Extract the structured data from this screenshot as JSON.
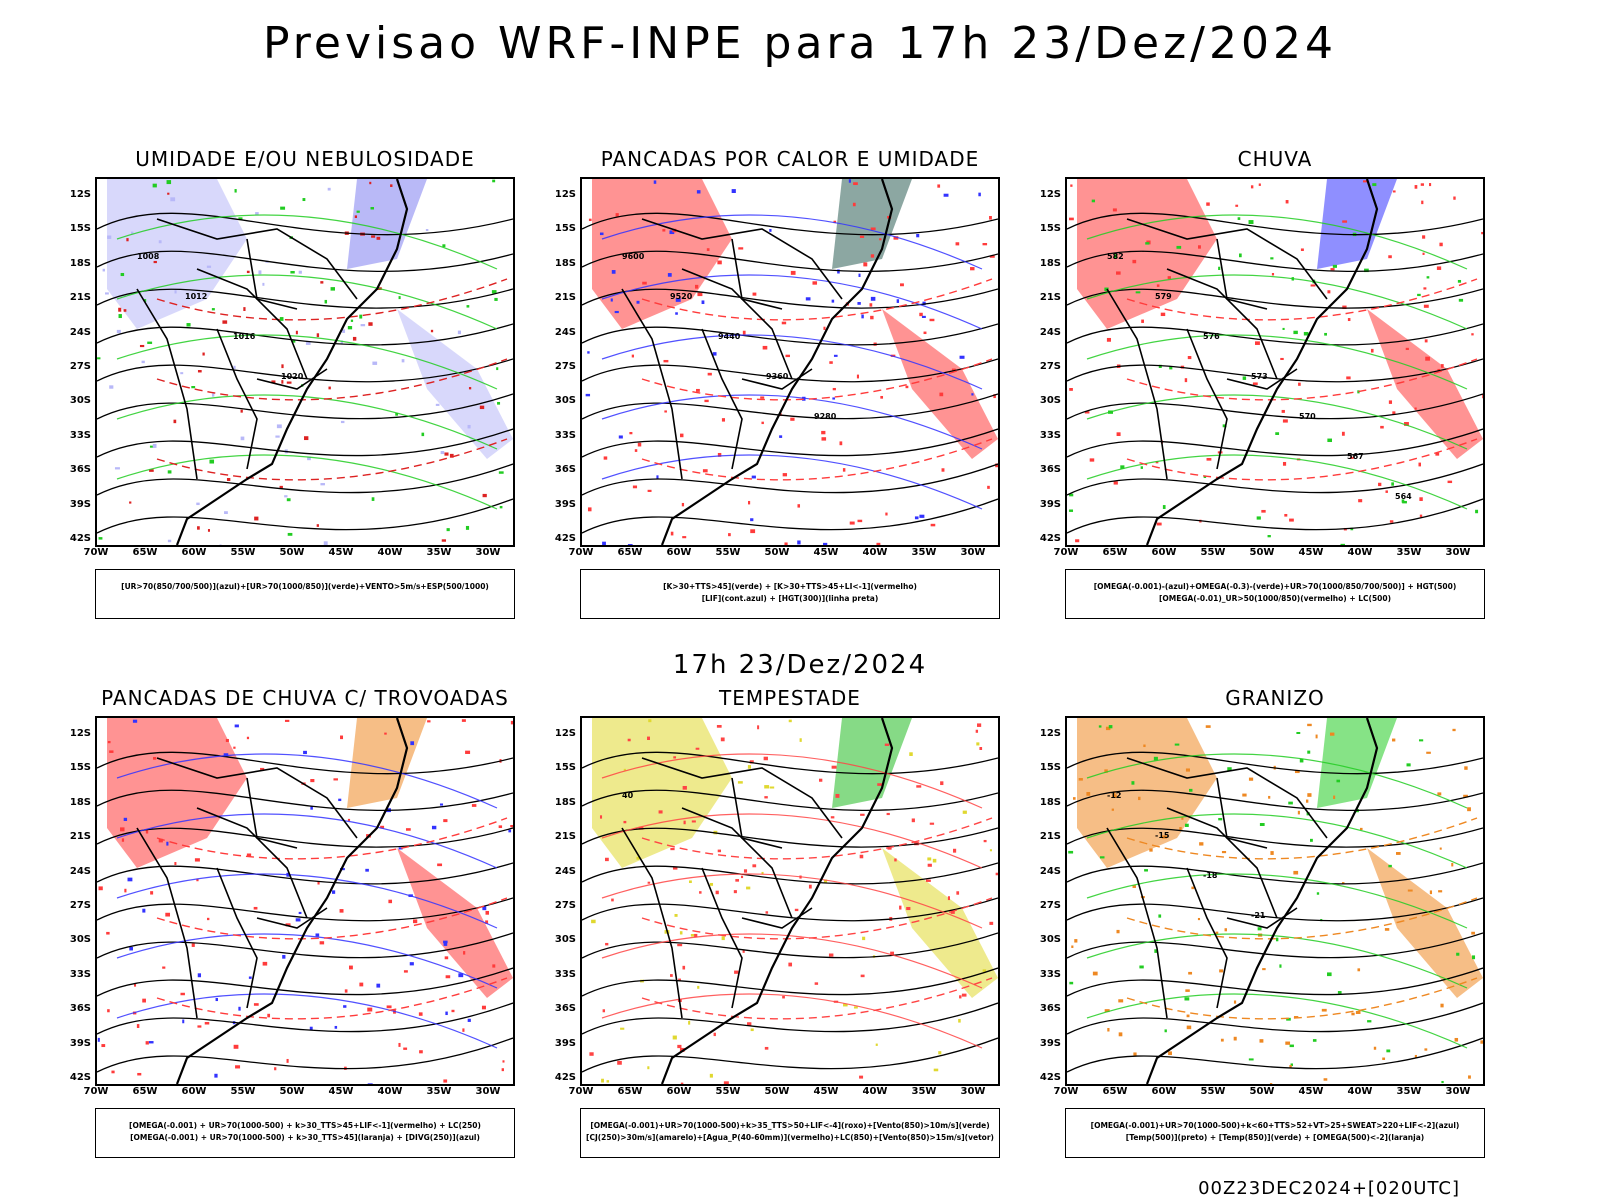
{
  "title": "Previsao WRF-INPE  para 17h 23/Dez/2024",
  "subtitle": "17h 23/Dez/2024",
  "footer": "00Z23DEC2024+[020UTC]",
  "axis": {
    "lat_labels": [
      "12S",
      "15S",
      "18S",
      "21S",
      "24S",
      "27S",
      "30S",
      "33S",
      "36S",
      "39S",
      "42S"
    ],
    "lon_labels": [
      "70W",
      "65W",
      "60W",
      "55W",
      "50W",
      "45W",
      "40W",
      "35W",
      "30W"
    ]
  },
  "panels": [
    {
      "title": "UMIDADE E/OU NEBULOSIDADE",
      "legend": [
        "[UR>70(850/700/500)](azul)+[UR>70(1000/850)](verde)+VENTO>5m/s+ESP(500/1000)"
      ],
      "contour_labels": [
        "1008",
        "1012",
        "1016",
        "1020"
      ],
      "colors": {
        "fill": "#b8b8f8",
        "fill2": "#8080f0",
        "line1": "#22cc22",
        "line2": "#dd2222",
        "line3": "#000000"
      }
    },
    {
      "title": "PANCADAS POR CALOR E UMIDADE",
      "legend": [
        "[K>30+TTS>45](verde)  +  [K>30+TTS>45+LI<-1](vermelho)",
        "[LIF](cont.azul)  +  [HGT(300)](linha preta)"
      ],
      "contour_labels": [
        "9600",
        "9520",
        "9440",
        "9360",
        "9280"
      ],
      "colors": {
        "fill": "#ff3b3b",
        "fill2": "#2e5e55",
        "line1": "#3333ff",
        "line2": "#ff3b3b",
        "line3": "#000000"
      }
    },
    {
      "title": "CHUVA",
      "legend": [
        "[OMEGA(-0.001)-(azul)+OMEGA(-0.3)-(verde)+UR>70(1000/850/700/500)]  +  HGT(500)",
        "[OMEGA(-0.01)_UR>50(1000/850)(vermelho)  +  LC(500)"
      ],
      "contour_labels": [
        "582",
        "579",
        "576",
        "573",
        "570",
        "567",
        "564"
      ],
      "colors": {
        "fill": "#ff3b3b",
        "fill2": "#3333ff",
        "line1": "#22cc22",
        "line2": "#ff3b3b",
        "line3": "#000000"
      }
    },
    {
      "title": "PANCADAS DE CHUVA C/ TROVOADAS",
      "legend": [
        "[OMEGA(-0.001)  +  UR>70(1000-500)  +  k>30_TTS>45+LIF<-1](vermelho)  +  LC(250)",
        "[OMEGA(-0.001)  +  UR>70(1000-500)  +  k>30_TTS>45](laranja)  +  [DIVG(250)](azul)"
      ],
      "contour_labels": [],
      "colors": {
        "fill": "#ff3b3b",
        "fill2": "#ee8822",
        "line1": "#3333ff",
        "line2": "#ff3b3b",
        "line3": "#000000"
      }
    },
    {
      "title": "TEMPESTADE",
      "legend": [
        "[OMEGA(-0.001)+UR>70(1000-500)+k>35_TTS>50+LIF<-4](roxo)+[Vento(850)>10m/s](verde)",
        "[CJ(250)>30m/s](amarelo)+[Agua_P(40-60mm)](vermelho)+LC(850)+[Vento(850)>15m/s](vetor)"
      ],
      "contour_labels": [
        "40"
      ],
      "colors": {
        "fill": "#e0d830",
        "fill2": "#22bb22",
        "line1": "#ff4444",
        "line2": "#ff4444",
        "line3": "#000000"
      }
    },
    {
      "title": "GRANIZO",
      "legend": [
        "[OMEGA(-0.001)+UR>70(1000-500)+k<60+TTS>52+VT>25+SWEAT>220+LIF<-2](azul)",
        "[Temp(500)](preto)  +  [Temp(850)](verde)  +  [OMEGA(500)<-2](laranja)"
      ],
      "contour_labels": [
        "-12",
        "-15",
        "-18",
        "-21"
      ],
      "colors": {
        "fill": "#ee8822",
        "fill2": "#22cc22",
        "line1": "#22cc22",
        "line2": "#ee8822",
        "line3": "#000000"
      }
    }
  ]
}
